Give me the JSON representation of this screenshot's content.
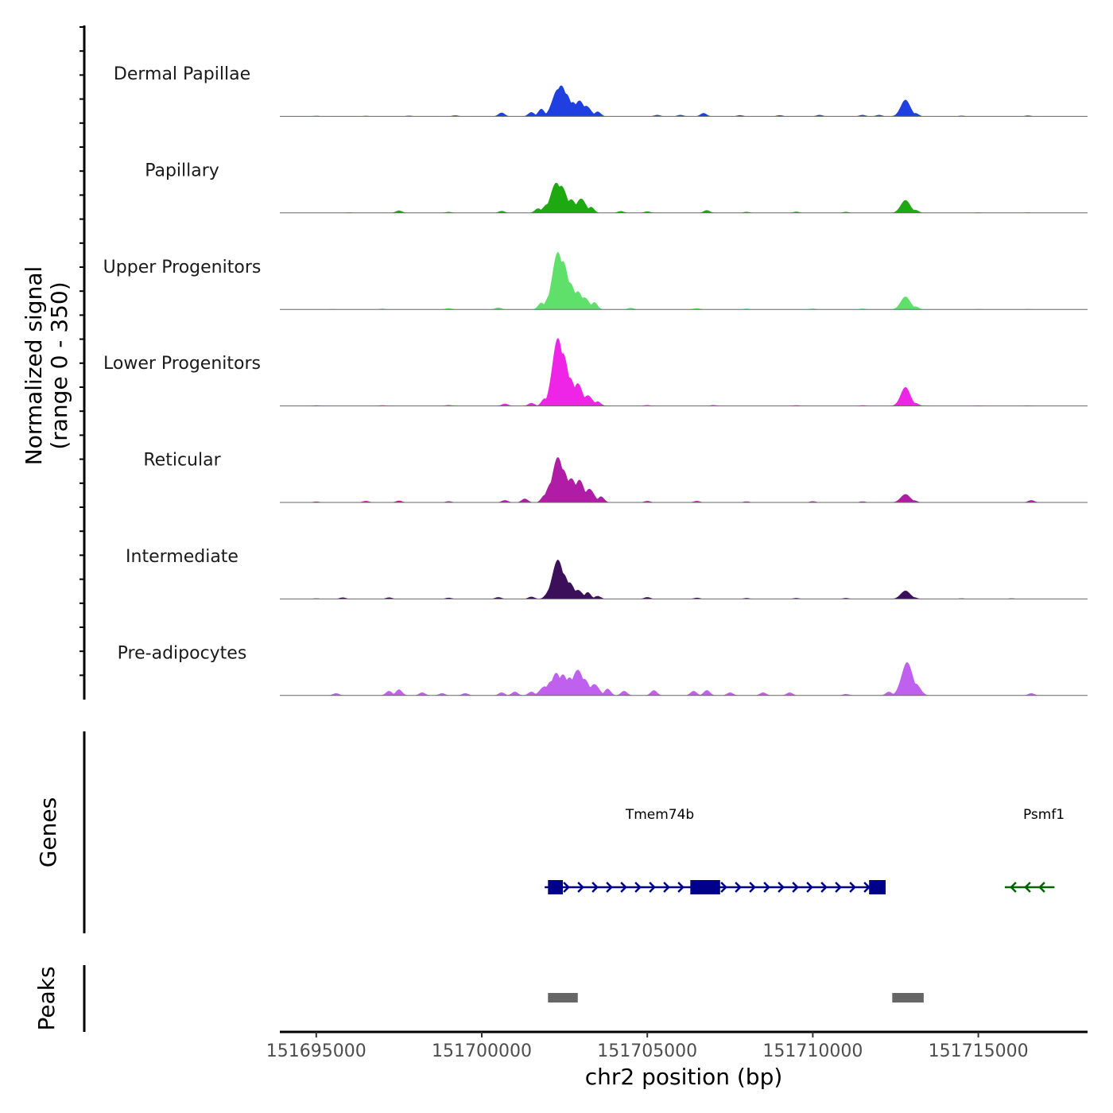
{
  "chart_data": {
    "type": "area",
    "title": "",
    "ylabel": "Normalized signal",
    "ylabel_range": "(range 0 - 350)",
    "xlabel": "chr2 position (bp)",
    "xlim": [
      151693900,
      151718300
    ],
    "ylim": [
      0,
      350
    ],
    "x_ticks": [
      151695000,
      151700000,
      151705000,
      151710000,
      151715000
    ],
    "x_tick_labels": [
      "151695000",
      "151700000",
      "151705000",
      "151710000",
      "151715000"
    ],
    "series": [
      {
        "name": "Dermal Papillae",
        "color": "#1f3fe0",
        "peaks": [
          [
            151695000,
            4
          ],
          [
            151696500,
            4
          ],
          [
            151697800,
            5
          ],
          [
            151699200,
            7
          ],
          [
            151700600,
            25
          ],
          [
            151701500,
            28
          ],
          [
            151701800,
            50
          ],
          [
            151702200,
            95
          ],
          [
            151702300,
            180
          ],
          [
            151702400,
            205
          ],
          [
            151702550,
            150
          ],
          [
            151702750,
            95
          ],
          [
            151702950,
            105
          ],
          [
            151703150,
            70
          ],
          [
            151703500,
            32
          ],
          [
            151705300,
            10
          ],
          [
            151706000,
            10
          ],
          [
            151706700,
            22
          ],
          [
            151707800,
            8
          ],
          [
            151709000,
            8
          ],
          [
            151710200,
            10
          ],
          [
            151711500,
            10
          ],
          [
            151712000,
            10
          ],
          [
            151712800,
            110
          ],
          [
            151713100,
            22
          ],
          [
            151714500,
            5
          ],
          [
            151716500,
            6
          ]
        ]
      },
      {
        "name": "Papillary",
        "color": "#1ea812",
        "peaks": [
          [
            151696000,
            3
          ],
          [
            151697500,
            16
          ],
          [
            151699000,
            7
          ],
          [
            151700600,
            13
          ],
          [
            151701700,
            30
          ],
          [
            151702000,
            60
          ],
          [
            151702250,
            200
          ],
          [
            151702400,
            180
          ],
          [
            151702700,
            90
          ],
          [
            151703000,
            95
          ],
          [
            151703300,
            40
          ],
          [
            151704200,
            12
          ],
          [
            151705000,
            10
          ],
          [
            151706800,
            18
          ],
          [
            151708000,
            7
          ],
          [
            151709500,
            8
          ],
          [
            151711000,
            7
          ],
          [
            151712800,
            85
          ],
          [
            151713100,
            20
          ],
          [
            151715000,
            3
          ],
          [
            151716500,
            3
          ]
        ]
      },
      {
        "name": "Upper Progenitors",
        "color": "#5fe06a",
        "peaks": [
          [
            151695500,
            3
          ],
          [
            151697000,
            5
          ],
          [
            151699000,
            8
          ],
          [
            151700500,
            12
          ],
          [
            151701800,
            45
          ],
          [
            151702100,
            110
          ],
          [
            151702300,
            380
          ],
          [
            151702450,
            320
          ],
          [
            151702650,
            180
          ],
          [
            151702900,
            120
          ],
          [
            151703100,
            80
          ],
          [
            151703400,
            48
          ],
          [
            151704500,
            10
          ],
          [
            151706500,
            8
          ],
          [
            151708000,
            5
          ],
          [
            151710000,
            5
          ],
          [
            151711500,
            5
          ],
          [
            151712800,
            85
          ],
          [
            151713100,
            20
          ],
          [
            151715000,
            3
          ],
          [
            151716500,
            3
          ]
        ]
      },
      {
        "name": "Lower Progenitors",
        "color": "#ee25e6",
        "peaks": [
          [
            151695000,
            4
          ],
          [
            151697000,
            5
          ],
          [
            151699000,
            6
          ],
          [
            151700700,
            15
          ],
          [
            151701500,
            20
          ],
          [
            151701900,
            50
          ],
          [
            151702150,
            120
          ],
          [
            151702300,
            450
          ],
          [
            151702450,
            350
          ],
          [
            151702650,
            190
          ],
          [
            151702900,
            150
          ],
          [
            151703200,
            70
          ],
          [
            151703500,
            30
          ],
          [
            151705000,
            6
          ],
          [
            151707000,
            6
          ],
          [
            151709500,
            5
          ],
          [
            151711500,
            5
          ],
          [
            151712800,
            125
          ],
          [
            151713100,
            20
          ],
          [
            151715000,
            3
          ],
          [
            151716500,
            3
          ]
        ]
      },
      {
        "name": "Reticular",
        "color": "#b01ca6",
        "peaks": [
          [
            151695000,
            6
          ],
          [
            151696500,
            10
          ],
          [
            151697500,
            12
          ],
          [
            151699000,
            8
          ],
          [
            151700700,
            15
          ],
          [
            151701300,
            25
          ],
          [
            151701900,
            50
          ],
          [
            151702100,
            130
          ],
          [
            151702300,
            300
          ],
          [
            151702450,
            220
          ],
          [
            151702700,
            160
          ],
          [
            151702950,
            150
          ],
          [
            151703250,
            90
          ],
          [
            151703600,
            40
          ],
          [
            151705000,
            10
          ],
          [
            151706500,
            10
          ],
          [
            151708000,
            7
          ],
          [
            151710000,
            8
          ],
          [
            151711500,
            7
          ],
          [
            151712800,
            55
          ],
          [
            151713050,
            15
          ],
          [
            151716600,
            15
          ]
        ]
      },
      {
        "name": "Intermediate",
        "color": "#3c0f5a",
        "peaks": [
          [
            151695000,
            4
          ],
          [
            151695800,
            10
          ],
          [
            151697200,
            10
          ],
          [
            151699000,
            8
          ],
          [
            151700500,
            12
          ],
          [
            151701500,
            15
          ],
          [
            151702000,
            40
          ],
          [
            151702150,
            100
          ],
          [
            151702300,
            260
          ],
          [
            151702450,
            170
          ],
          [
            151702650,
            110
          ],
          [
            151702900,
            60
          ],
          [
            151703200,
            45
          ],
          [
            151703500,
            20
          ],
          [
            151705000,
            12
          ],
          [
            151706500,
            8
          ],
          [
            151708000,
            6
          ],
          [
            151709500,
            6
          ],
          [
            151711000,
            6
          ],
          [
            151712800,
            55
          ],
          [
            151713050,
            12
          ],
          [
            151714500,
            4
          ],
          [
            151716000,
            4
          ]
        ]
      },
      {
        "name": "Pre-adipocytes",
        "color": "#c060ee",
        "peaks": [
          [
            151695600,
            15
          ],
          [
            151697200,
            30
          ],
          [
            151697500,
            40
          ],
          [
            151698200,
            20
          ],
          [
            151698800,
            15
          ],
          [
            151699500,
            15
          ],
          [
            151700600,
            20
          ],
          [
            151701000,
            25
          ],
          [
            151701500,
            25
          ],
          [
            151701900,
            60
          ],
          [
            151702100,
            95
          ],
          [
            151702250,
            150
          ],
          [
            151702450,
            140
          ],
          [
            151702650,
            120
          ],
          [
            151702900,
            170
          ],
          [
            151703100,
            110
          ],
          [
            151703400,
            75
          ],
          [
            151703800,
            45
          ],
          [
            151704300,
            30
          ],
          [
            151705200,
            35
          ],
          [
            151706400,
            30
          ],
          [
            151706800,
            35
          ],
          [
            151707500,
            20
          ],
          [
            151708500,
            20
          ],
          [
            151709300,
            20
          ],
          [
            151711000,
            10
          ],
          [
            151712300,
            25
          ],
          [
            151712600,
            35
          ],
          [
            151712850,
            220
          ],
          [
            151713100,
            80
          ],
          [
            151713200,
            30
          ],
          [
            151716600,
            15
          ]
        ]
      }
    ],
    "genes": [
      {
        "name": "Tmem74b",
        "strand": "+",
        "color": "#00008b",
        "start": 151701900,
        "end": 151712200,
        "exons": [
          [
            151702000,
            151702450
          ],
          [
            151706300,
            151707200
          ],
          [
            151711700,
            151712200
          ]
        ],
        "label_pos": 151702150
      },
      {
        "name": "Psmf1",
        "strand": "-",
        "color": "#006400",
        "start": 151715800,
        "end": 151717300,
        "exons": [],
        "label_pos": 151716400
      }
    ],
    "peaks_track": [
      [
        151702000,
        151702900
      ],
      [
        151712400,
        151713350
      ]
    ],
    "peaks_color": "#666666",
    "panel_labels": {
      "genes": "Genes",
      "peaks": "Peaks"
    }
  }
}
